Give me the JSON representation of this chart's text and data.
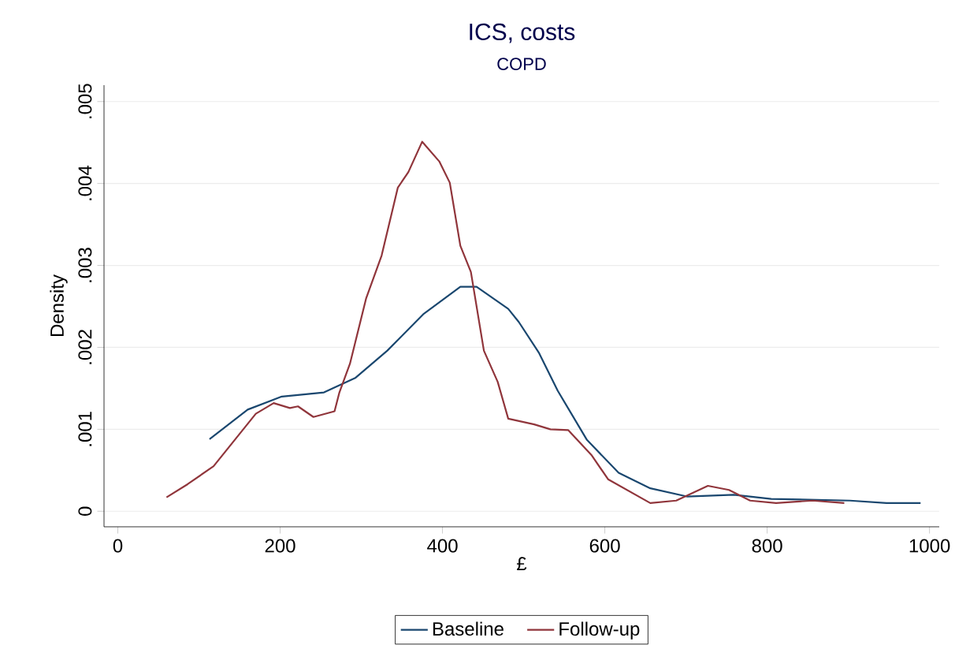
{
  "chart_data": {
    "type": "line",
    "title": "ICS, costs",
    "subtitle": "COPD",
    "xlabel": "£",
    "ylabel": "Density",
    "xlim": [
      -17,
      1012
    ],
    "ylim": [
      -0.00019,
      0.0052
    ],
    "xticks": [
      0,
      200,
      400,
      600,
      800,
      1000
    ],
    "yticks": [
      {
        "value": 0,
        "label": "0"
      },
      {
        "value": 0.001,
        "label": ".001"
      },
      {
        "value": 0.002,
        "label": ".002"
      },
      {
        "value": 0.003,
        "label": ".003"
      },
      {
        "value": 0.004,
        "label": ".004"
      },
      {
        "value": 0.005,
        "label": ".005"
      }
    ],
    "grid": "y",
    "legend": "bottom",
    "line_style": "solid",
    "series": [
      {
        "name": "Baseline",
        "color": "#1a476f",
        "x": [
          113,
          160,
          202,
          254,
          293,
          332,
          377,
          422,
          442,
          481,
          494,
          519,
          542,
          578,
          617,
          656,
          701,
          759,
          805,
          902,
          947,
          989
        ],
        "values": [
          0.00088,
          0.00124,
          0.0014,
          0.00145,
          0.00163,
          0.00196,
          0.00241,
          0.00274,
          0.00274,
          0.00247,
          0.00231,
          0.00193,
          0.00147,
          0.00087,
          0.00047,
          0.00028,
          0.00018,
          0.0002,
          0.00015,
          0.00013,
          0.0001,
          0.0001
        ]
      },
      {
        "name": "Follow-up",
        "color": "#90353b",
        "x": [
          60,
          86,
          118,
          144,
          170,
          192,
          212,
          222,
          241,
          267,
          273,
          286,
          306,
          325,
          345,
          358,
          375,
          396,
          409,
          422,
          435,
          451,
          468,
          481,
          513,
          533,
          555,
          584,
          604,
          656,
          688,
          727,
          753,
          779,
          811,
          856,
          895
        ],
        "values": [
          0.00017,
          0.00033,
          0.00055,
          0.00087,
          0.00119,
          0.00132,
          0.00126,
          0.00128,
          0.00115,
          0.00122,
          0.00145,
          0.0018,
          0.0026,
          0.00312,
          0.00395,
          0.00414,
          0.00451,
          0.00427,
          0.00401,
          0.00324,
          0.00292,
          0.00196,
          0.00158,
          0.00113,
          0.00106,
          0.001,
          0.00099,
          0.00068,
          0.00039,
          0.0001,
          0.00013,
          0.00031,
          0.00026,
          0.00013,
          0.0001,
          0.00013,
          0.0001
        ]
      }
    ]
  }
}
